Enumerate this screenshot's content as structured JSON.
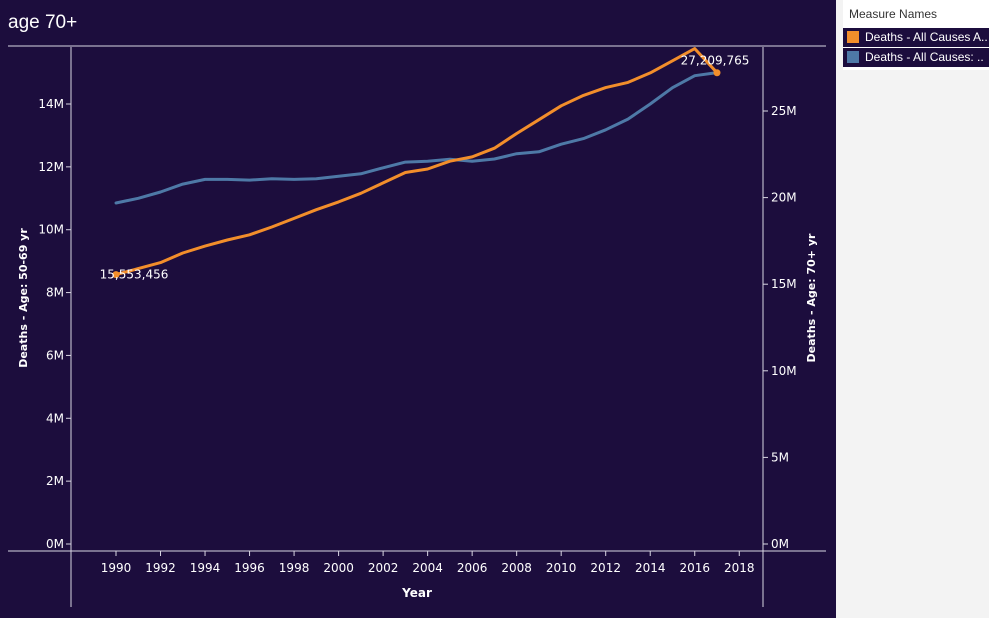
{
  "title": "age 70+",
  "legend": {
    "header": "Measure Names",
    "items": [
      {
        "label": "Deaths - All Causes A..",
        "color": "#f28e2b"
      },
      {
        "label": "Deaths - All Causes: ..",
        "color": "#4e79a7"
      }
    ]
  },
  "chart_data": {
    "type": "line",
    "xlabel": "Year",
    "x_ticks": [
      "1990",
      "1992",
      "1994",
      "1996",
      "1998",
      "2000",
      "2002",
      "2004",
      "2006",
      "2008",
      "2010",
      "2012",
      "2014",
      "2016",
      "2018"
    ],
    "y_left_label": "Deaths - Age: 50-69 yr",
    "y_left_ticks": [
      "0M",
      "2M",
      "4M",
      "6M",
      "8M",
      "10M",
      "12M",
      "14M"
    ],
    "y_left_range": [
      0,
      15500000
    ],
    "y_right_label": "Deaths - Age: 70+ yr",
    "y_right_ticks": [
      "0M",
      "5M",
      "10M",
      "15M",
      "20M",
      "25M"
    ],
    "y_right_range": [
      0,
      28000000
    ],
    "x_range": [
      1988,
      2019
    ],
    "annotations": [
      {
        "text": "15,553,456",
        "series": 0,
        "year": 1990
      },
      {
        "text": "27,209,765",
        "series": 0,
        "year": 2017
      }
    ],
    "series": [
      {
        "name": "Deaths - All Causes A..",
        "axis": "right",
        "color": "#f28e2b",
        "x": [
          1990,
          1991,
          1992,
          1993,
          1994,
          1995,
          1996,
          1997,
          1998,
          1999,
          2000,
          2001,
          2002,
          2003,
          2004,
          2005,
          2006,
          2007,
          2008,
          2009,
          2010,
          2011,
          2012,
          2013,
          2014,
          2015,
          2016,
          2017
        ],
        "values": [
          15553456,
          15900000,
          16250000,
          16800000,
          17200000,
          17550000,
          17850000,
          18300000,
          18800000,
          19300000,
          19750000,
          20250000,
          20850000,
          21450000,
          21650000,
          22100000,
          22350000,
          22850000,
          23700000,
          24500000,
          25300000,
          25900000,
          26350000,
          26650000,
          27200000,
          27900000,
          28600000,
          27209765
        ]
      },
      {
        "name": "Deaths - All Causes: ..",
        "axis": "left",
        "color": "#4e79a7",
        "x": [
          1990,
          1991,
          1992,
          1993,
          1994,
          1995,
          1996,
          1997,
          1998,
          1999,
          2000,
          2001,
          2002,
          2003,
          2004,
          2005,
          2006,
          2007,
          2008,
          2009,
          2010,
          2011,
          2012,
          2013,
          2014,
          2015,
          2016,
          2017
        ],
        "values": [
          10850000,
          11000000,
          11200000,
          11450000,
          11600000,
          11600000,
          11580000,
          11620000,
          11600000,
          11620000,
          11700000,
          11780000,
          11970000,
          12150000,
          12180000,
          12240000,
          12180000,
          12250000,
          12420000,
          12480000,
          12720000,
          12900000,
          13180000,
          13520000,
          14000000,
          14520000,
          14900000,
          15000000
        ]
      }
    ]
  }
}
